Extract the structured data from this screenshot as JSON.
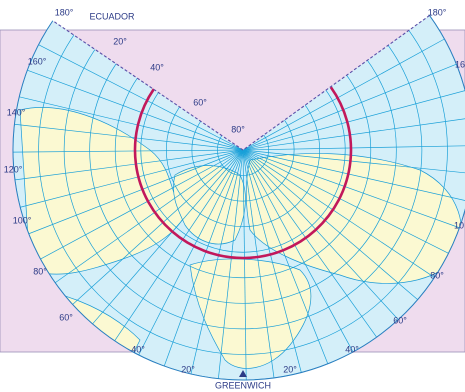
{
  "labels": [
    "180°",
    "ECUADOR",
    "20°",
    "40°",
    "60°",
    "80°",
    "160°",
    "140°",
    "120°",
    "100°",
    "80°",
    "60°",
    "40°",
    "20°",
    "GREENWICH",
    "20°",
    "40°",
    "60°",
    "80°",
    "10",
    "16",
    "180°"
  ]
}
